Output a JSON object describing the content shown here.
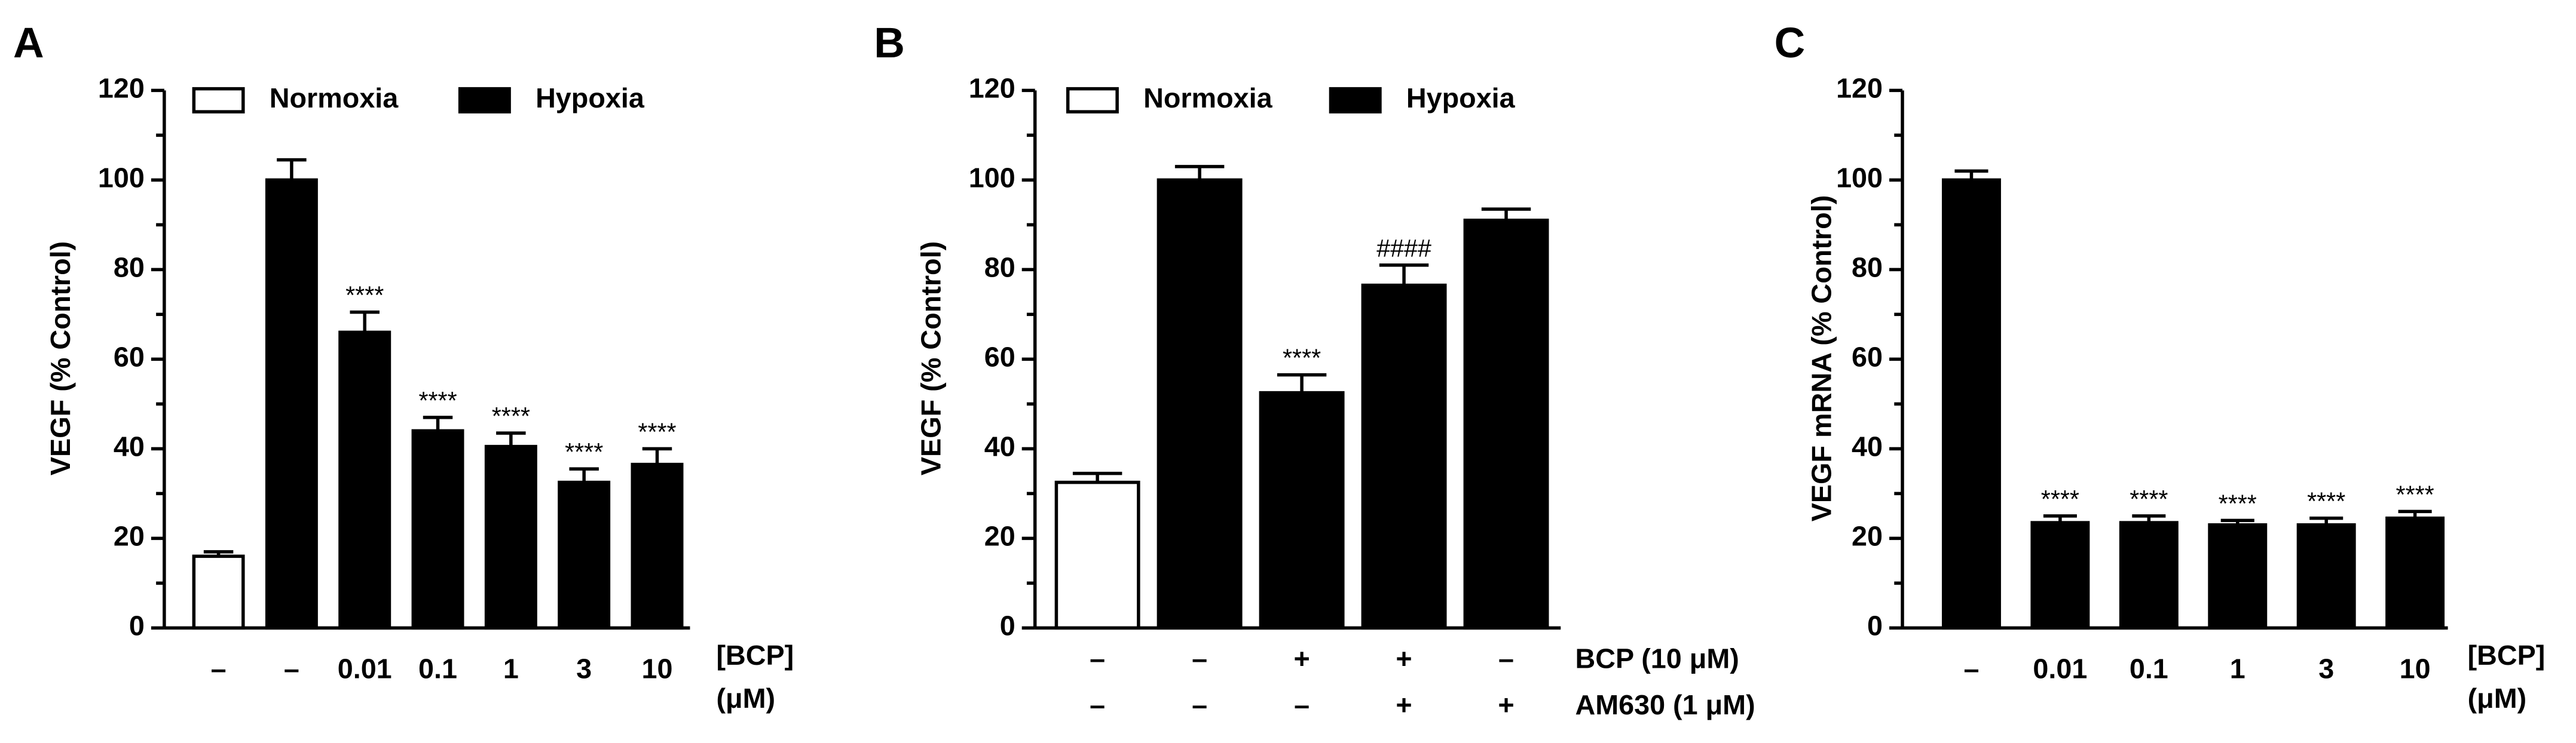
{
  "chart_data": [
    {
      "type": "bar",
      "panel": "A",
      "ylabel": "VEGF (% Control)",
      "ylim": [
        0,
        120
      ],
      "yticks": [
        0,
        20,
        40,
        60,
        80,
        100,
        120
      ],
      "yminorticks": [
        10,
        30,
        50,
        70,
        90,
        110
      ],
      "categories": [
        "–",
        "–",
        "0.01",
        "0.1",
        "1",
        "3",
        "10"
      ],
      "xlabel_lines": [
        "[BCP]",
        "(μM)"
      ],
      "series": [
        {
          "name": "Normoxia",
          "color": "#ffffff",
          "values": [
            16,
            null,
            null,
            null,
            null,
            null,
            null
          ],
          "errors": [
            1,
            null,
            null,
            null,
            null,
            null,
            null
          ]
        },
        {
          "name": "Hypoxia",
          "color": "#000000",
          "values": [
            null,
            100,
            66,
            44,
            40.5,
            32.5,
            36.5
          ],
          "errors": [
            null,
            4.5,
            4.5,
            3,
            3,
            3,
            3.5
          ]
        }
      ],
      "annotations": [
        null,
        null,
        "****",
        "****",
        "****",
        "****",
        "****"
      ]
    },
    {
      "type": "bar",
      "panel": "B",
      "ylabel": "VEGF (% Control)",
      "ylim": [
        0,
        120
      ],
      "yticks": [
        0,
        20,
        40,
        60,
        80,
        100,
        120
      ],
      "yminorticks": [
        10,
        30,
        50,
        70,
        90,
        110
      ],
      "category_rows": [
        {
          "label": "BCP (10 μM)",
          "values": [
            "–",
            "–",
            "+",
            "+",
            "–"
          ]
        },
        {
          "label": "AM630 (1 μM)",
          "values": [
            "–",
            "–",
            "–",
            "+",
            "+"
          ]
        }
      ],
      "series": [
        {
          "name": "Normoxia",
          "color": "#ffffff",
          "values": [
            32.5,
            null,
            null,
            null,
            null
          ],
          "errors": [
            2,
            null,
            null,
            null,
            null
          ]
        },
        {
          "name": "Hypoxia",
          "color": "#000000",
          "values": [
            null,
            100,
            52.5,
            76.5,
            91
          ],
          "errors": [
            null,
            3,
            4,
            4.5,
            2.5
          ]
        }
      ],
      "annotations": [
        null,
        null,
        "****",
        "####",
        null
      ]
    },
    {
      "type": "bar",
      "panel": "C",
      "ylabel": "VEGF mRNA (% Control)",
      "ylim": [
        0,
        120
      ],
      "yticks": [
        0,
        20,
        40,
        60,
        80,
        100,
        120
      ],
      "yminorticks": [
        10,
        30,
        50,
        70,
        90,
        110
      ],
      "categories": [
        "–",
        "0.01",
        "0.1",
        "1",
        "3",
        "10"
      ],
      "xlabel_lines": [
        "[BCP]",
        "(μM)"
      ],
      "series": [
        {
          "color": "#000000",
          "values": [
            100,
            23.5,
            23.5,
            23,
            23,
            24.5
          ],
          "errors": [
            2,
            1.5,
            1.5,
            1,
            1.5,
            1.5
          ]
        }
      ],
      "annotations": [
        null,
        "****",
        "****",
        "****",
        "****",
        "****"
      ]
    }
  ]
}
